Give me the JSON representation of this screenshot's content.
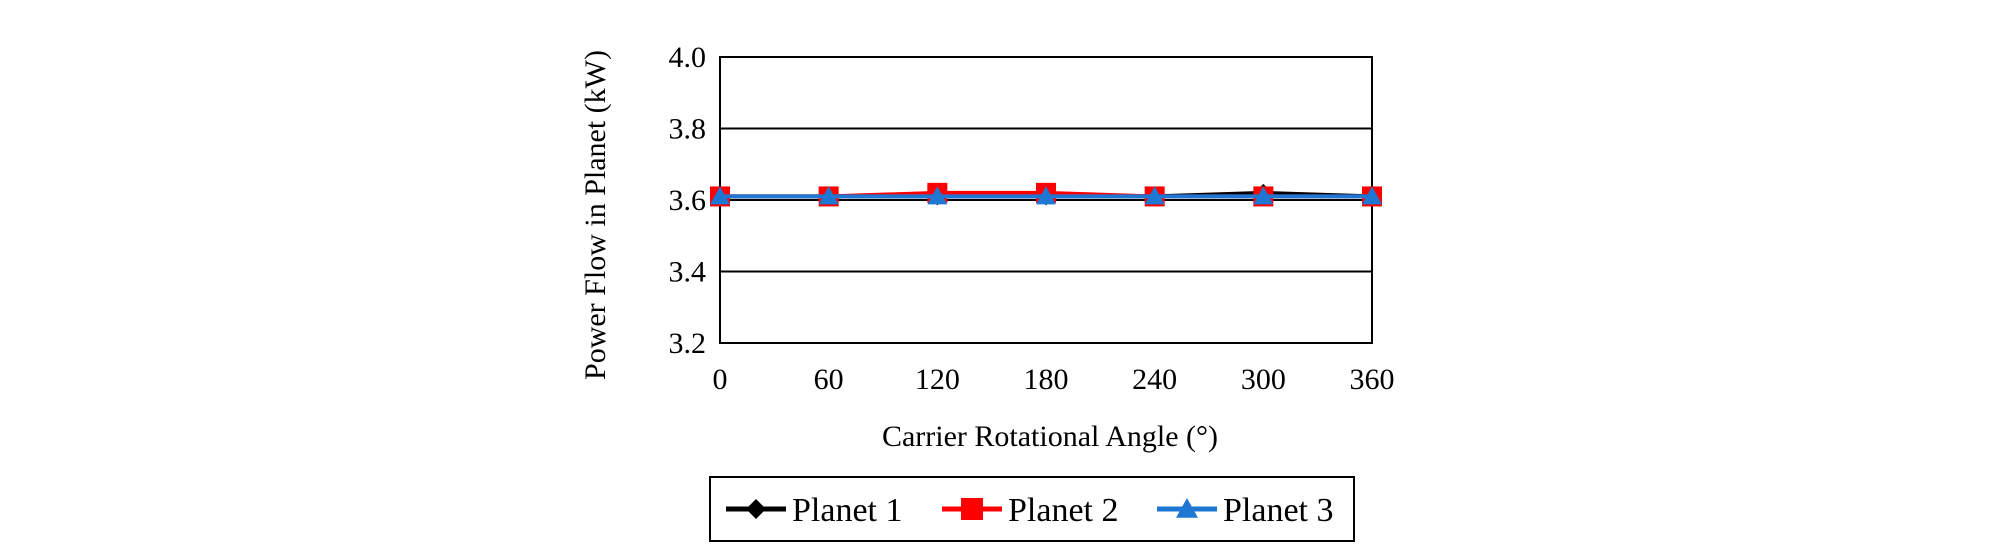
{
  "chart_data": {
    "type": "line",
    "title": "",
    "xlabel": "Carrier Rotational Angle (°)",
    "ylabel": "Power Flow in Planet (kW)",
    "xlim": [
      0,
      360
    ],
    "ylim": [
      3.2,
      4.0
    ],
    "x_ticks": [
      0,
      60,
      120,
      180,
      240,
      300,
      360
    ],
    "y_ticks": [
      3.2,
      3.4,
      3.6,
      3.8,
      4.0
    ],
    "y_tick_labels": [
      "3.2",
      "3.4",
      "3.6",
      "3.8",
      "4.0"
    ],
    "grid": "horizontal",
    "legend_position": "bottom",
    "x": [
      0,
      60,
      120,
      180,
      240,
      300,
      360
    ],
    "series": [
      {
        "name": "Planet 1",
        "color": "#000000",
        "marker": "diamond",
        "values": [
          3.61,
          3.61,
          3.61,
          3.61,
          3.61,
          3.62,
          3.61
        ]
      },
      {
        "name": "Planet 2",
        "color": "#ff0000",
        "marker": "square",
        "values": [
          3.61,
          3.61,
          3.62,
          3.62,
          3.61,
          3.61,
          3.61
        ]
      },
      {
        "name": "Planet 3",
        "color": "#1f77d4",
        "marker": "triangle",
        "values": [
          3.61,
          3.61,
          3.61,
          3.61,
          3.61,
          3.61,
          3.61
        ]
      }
    ]
  }
}
